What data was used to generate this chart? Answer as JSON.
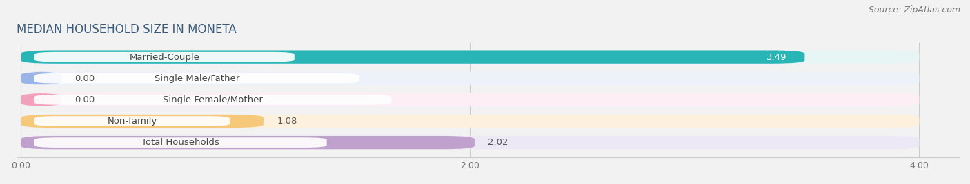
{
  "title": "MEDIAN HOUSEHOLD SIZE IN MONETA",
  "source": "Source: ZipAtlas.com",
  "categories": [
    "Married-Couple",
    "Single Male/Father",
    "Single Female/Mother",
    "Non-family",
    "Total Households"
  ],
  "values": [
    3.49,
    0.0,
    0.0,
    1.08,
    2.02
  ],
  "bar_colors": [
    "#29b5b5",
    "#9ab4e8",
    "#f2a0bc",
    "#f5c87a",
    "#c0a0cc"
  ],
  "bar_bg_colors": [
    "#e8f5f5",
    "#edf1fa",
    "#fceef4",
    "#fdf0dc",
    "#ece8f5"
  ],
  "zero_bar_width": 0.18,
  "xlim_min": 0,
  "xlim_max": 4.0,
  "xticks": [
    0.0,
    2.0,
    4.0
  ],
  "xtick_labels": [
    "0.00",
    "2.00",
    "4.00"
  ],
  "value_labels": [
    "3.49",
    "0.00",
    "0.00",
    "1.08",
    "2.02"
  ],
  "value_inside": [
    true,
    false,
    false,
    false,
    false
  ],
  "title_fontsize": 12,
  "label_fontsize": 9.5,
  "value_fontsize": 9.5,
  "source_fontsize": 9,
  "background_color": "#f2f2f2",
  "bar_height": 0.62,
  "bar_gap": 0.38
}
